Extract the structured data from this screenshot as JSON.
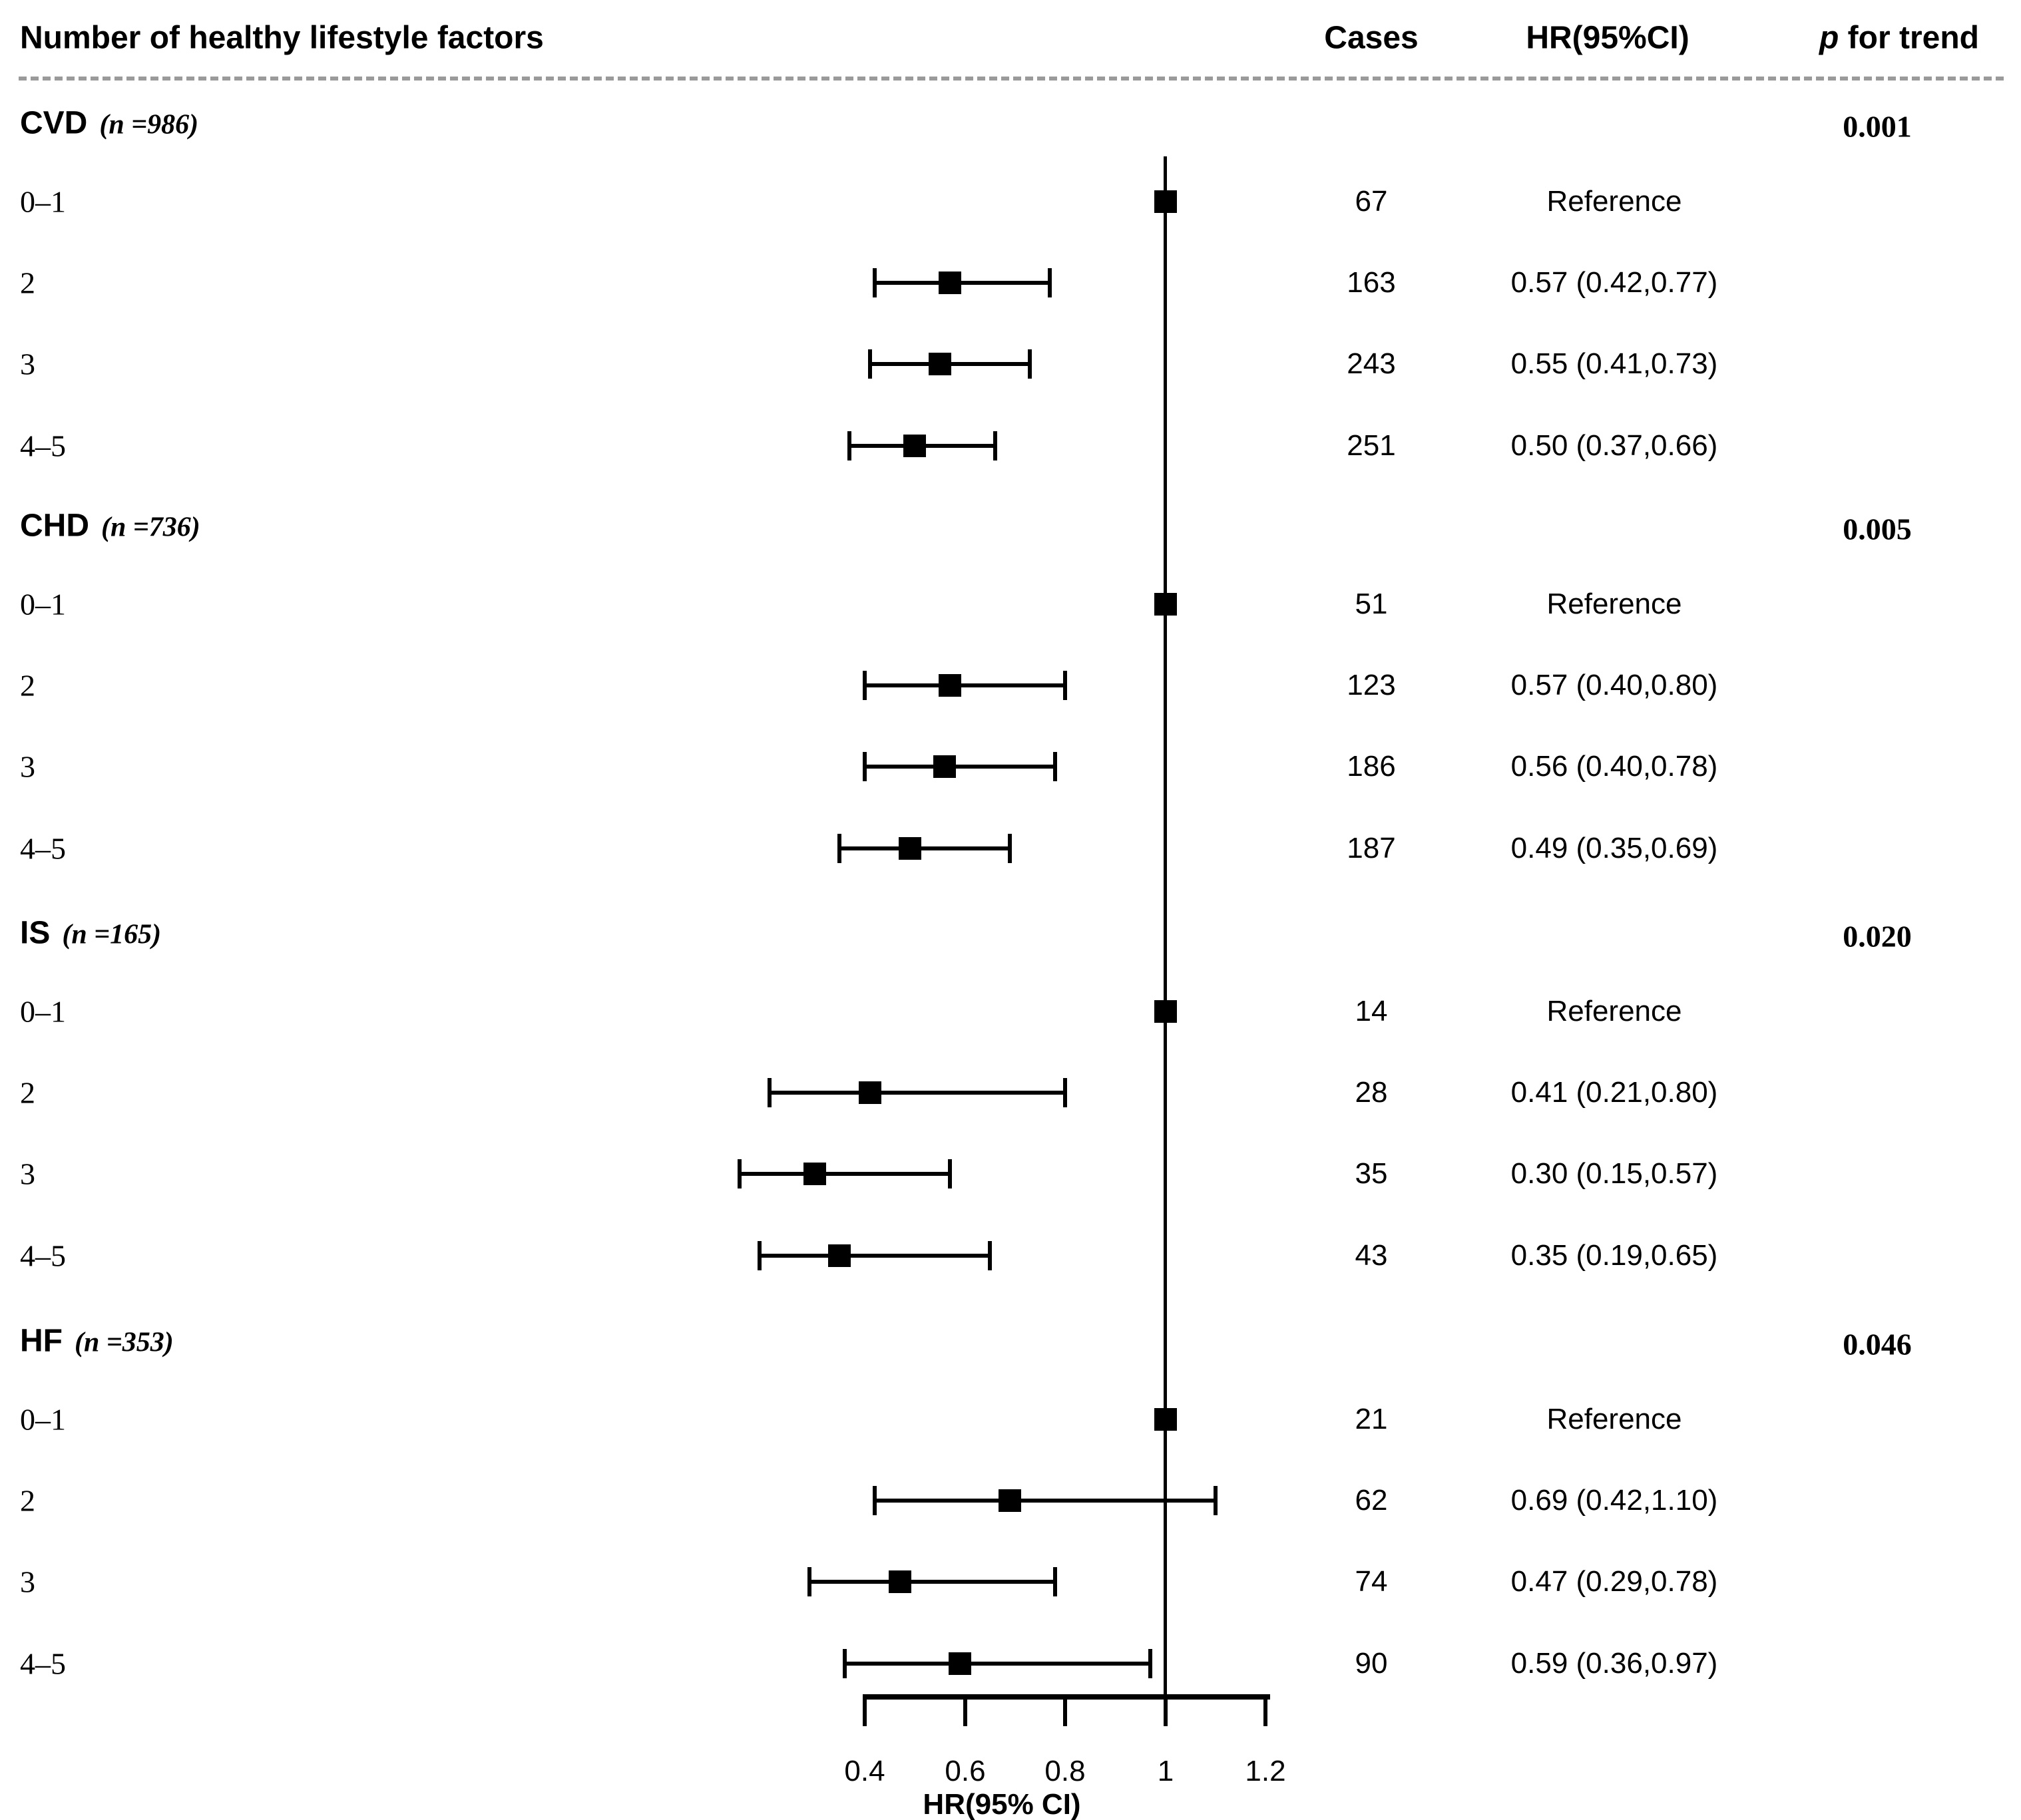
{
  "header": {
    "factor_column": "Number of healthy lifestyle factors",
    "cases_column": "Cases",
    "hr_column": "HR(95%CI)",
    "p_column_italic": "p",
    "p_column_rest": " for trend"
  },
  "axis": {
    "title": "HR(95% CI)",
    "min": 0.4,
    "max": 1.2,
    "reference": 1,
    "ticks": [
      0.4,
      0.6,
      0.8,
      1,
      1.2
    ],
    "tick_labels": [
      "0.4",
      "0.6",
      "0.8",
      "1",
      "1.2"
    ]
  },
  "chart_data": {
    "type": "forest",
    "title": "Number of healthy lifestyle factors",
    "xlabel": "HR(95% CI)",
    "x_range": [
      0.4,
      1.2
    ],
    "reference_line": 1,
    "grid": false,
    "sections": [
      {
        "name": "CVD",
        "n_label": "(n =986)",
        "p_for_trend": "0.001",
        "rows": [
          {
            "label": "0–1",
            "cases": "67",
            "hr_text": "Reference",
            "hr": 1.0,
            "lo": null,
            "hi": null,
            "reference": true
          },
          {
            "label": "2",
            "cases": "163",
            "hr_text": "0.57 (0.42,0.77)",
            "hr": 0.57,
            "lo": 0.42,
            "hi": 0.77,
            "reference": false
          },
          {
            "label": "3",
            "cases": "243",
            "hr_text": "0.55 (0.41,0.73)",
            "hr": 0.55,
            "lo": 0.41,
            "hi": 0.73,
            "reference": false
          },
          {
            "label": "4–5",
            "cases": "251",
            "hr_text": "0.50 (0.37,0.66)",
            "hr": 0.5,
            "lo": 0.37,
            "hi": 0.66,
            "reference": false
          }
        ]
      },
      {
        "name": "CHD",
        "n_label": "(n =736)",
        "p_for_trend": "0.005",
        "rows": [
          {
            "label": "0–1",
            "cases": "51",
            "hr_text": "Reference",
            "hr": 1.0,
            "lo": null,
            "hi": null,
            "reference": true
          },
          {
            "label": "2",
            "cases": "123",
            "hr_text": "0.57 (0.40,0.80)",
            "hr": 0.57,
            "lo": 0.4,
            "hi": 0.8,
            "reference": false
          },
          {
            "label": "3",
            "cases": "186",
            "hr_text": "0.56 (0.40,0.78)",
            "hr": 0.56,
            "lo": 0.4,
            "hi": 0.78,
            "reference": false
          },
          {
            "label": "4–5",
            "cases": "187",
            "hr_text": "0.49 (0.35,0.69)",
            "hr": 0.49,
            "lo": 0.35,
            "hi": 0.69,
            "reference": false
          }
        ]
      },
      {
        "name": "IS",
        "n_label": "(n =165)",
        "p_for_trend": "0.020",
        "rows": [
          {
            "label": "0–1",
            "cases": "14",
            "hr_text": "Reference",
            "hr": 1.0,
            "lo": null,
            "hi": null,
            "reference": true
          },
          {
            "label": "2",
            "cases": "28",
            "hr_text": "0.41 (0.21,0.80)",
            "hr": 0.41,
            "lo": 0.21,
            "hi": 0.8,
            "reference": false
          },
          {
            "label": "3",
            "cases": "35",
            "hr_text": "0.30 (0.15,0.57)",
            "hr": 0.3,
            "lo": 0.15,
            "hi": 0.57,
            "reference": false
          },
          {
            "label": "4–5",
            "cases": "43",
            "hr_text": "0.35 (0.19,0.65)",
            "hr": 0.35,
            "lo": 0.19,
            "hi": 0.65,
            "reference": false
          }
        ]
      },
      {
        "name": "HF",
        "n_label": "(n =353)",
        "p_for_trend": "0.046",
        "rows": [
          {
            "label": "0–1",
            "cases": "21",
            "hr_text": "Reference",
            "hr": 1.0,
            "lo": null,
            "hi": null,
            "reference": true
          },
          {
            "label": "2",
            "cases": "62",
            "hr_text": "0.69 (0.42,1.10)",
            "hr": 0.69,
            "lo": 0.42,
            "hi": 1.1,
            "reference": false
          },
          {
            "label": "3",
            "cases": "74",
            "hr_text": "0.47 (0.29,0.78)",
            "hr": 0.47,
            "lo": 0.29,
            "hi": 0.78,
            "reference": false
          },
          {
            "label": "4–5",
            "cases": "90",
            "hr_text": "0.59 (0.36,0.97)",
            "hr": 0.59,
            "lo": 0.36,
            "hi": 0.97,
            "reference": false
          }
        ]
      }
    ],
    "colors": {
      "marker": "#000000",
      "line": "#000000",
      "separator": "#9a9a9a",
      "background": "#ffffff"
    }
  }
}
